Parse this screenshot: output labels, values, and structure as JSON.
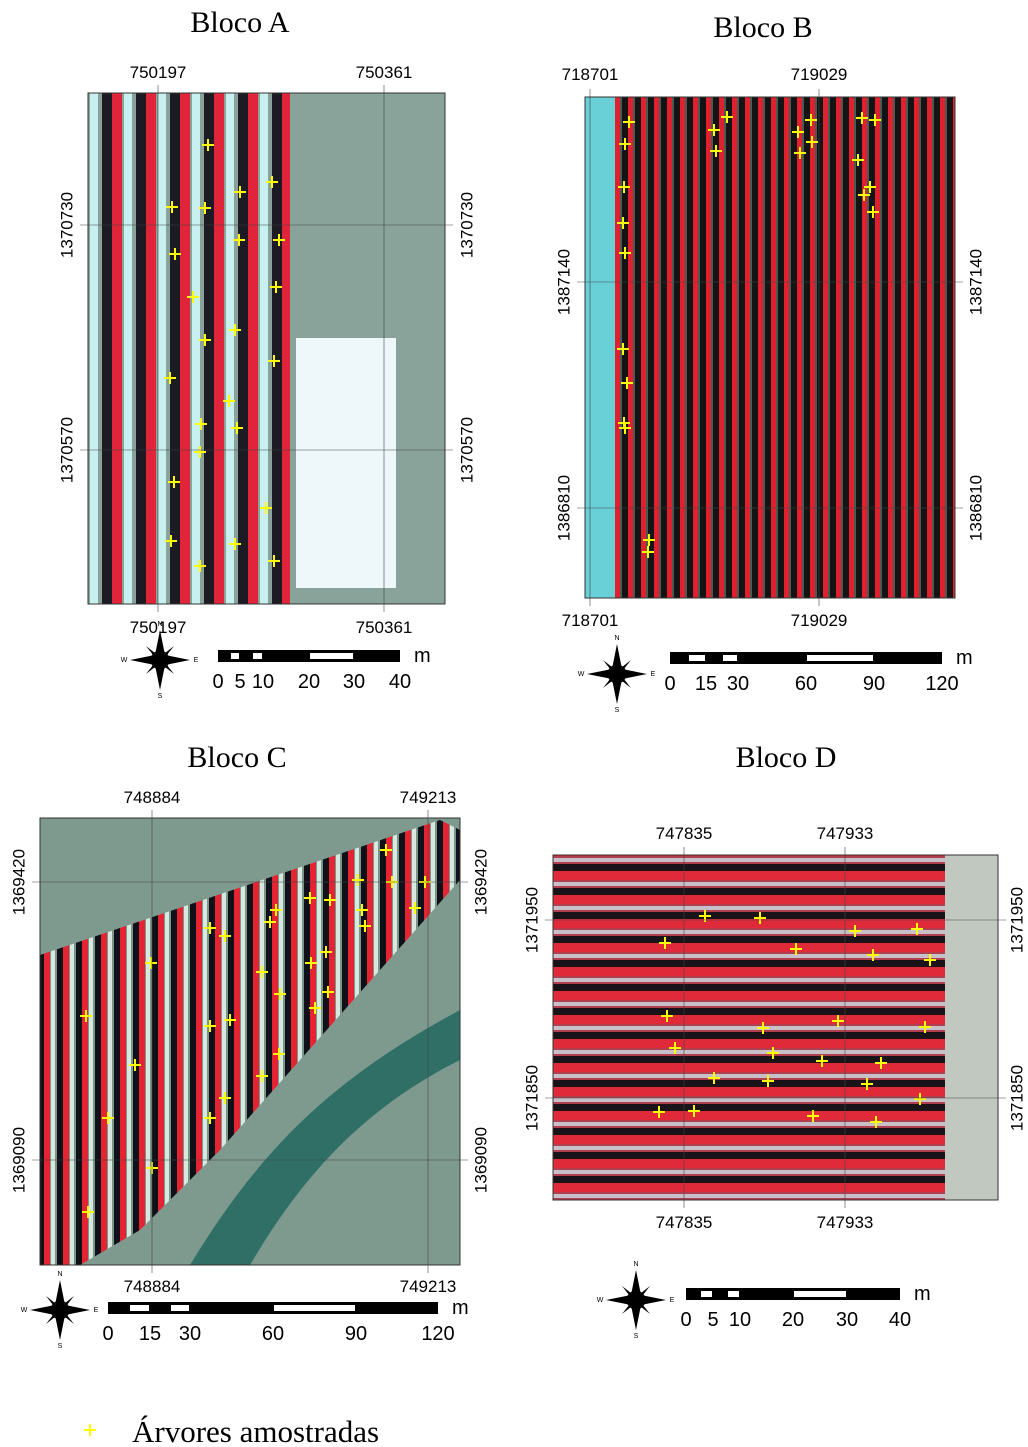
{
  "panels": [
    {
      "title": "Bloco A",
      "x_top": [
        "750197",
        "750361"
      ],
      "x_bottom": [
        "750197",
        "750361"
      ],
      "y_left": [
        "1370730",
        "1370570"
      ],
      "y_right": [
        "1370730",
        "1370570"
      ],
      "scale": [
        "0",
        "5",
        "10",
        "20",
        "30",
        "40"
      ],
      "scale_unit": "m"
    },
    {
      "title": "Bloco B",
      "x_top": [
        "718701",
        "719029"
      ],
      "x_bottom": [
        "718701",
        "719029"
      ],
      "y_left": [
        "1387140",
        "1386810"
      ],
      "y_right": [
        "1387140",
        "1386810"
      ],
      "scale": [
        "0",
        "15",
        "30",
        "60",
        "90",
        "120"
      ],
      "scale_unit": "m"
    },
    {
      "title": "Bloco C",
      "x_top": [
        "748884",
        "749213"
      ],
      "x_bottom": [
        "748884",
        "749213"
      ],
      "y_left": [
        "1369420",
        "1369090"
      ],
      "y_right": [
        "1369420",
        "1369090"
      ],
      "scale": [
        "0",
        "15",
        "30",
        "60",
        "90",
        "120"
      ],
      "scale_unit": "m"
    },
    {
      "title": "Bloco D",
      "x_top": [
        "747835",
        "747933"
      ],
      "x_bottom": [
        "747835",
        "747933"
      ],
      "y_left": [
        "1371950",
        "1371850"
      ],
      "y_right": [
        "1371950",
        "1371850"
      ],
      "scale": [
        "0",
        "5",
        "10",
        "20",
        "30",
        "40"
      ],
      "scale_unit": "m"
    }
  ],
  "compass": [
    "N",
    "S",
    "W",
    "E"
  ],
  "legend": "Árvores amostradas"
}
